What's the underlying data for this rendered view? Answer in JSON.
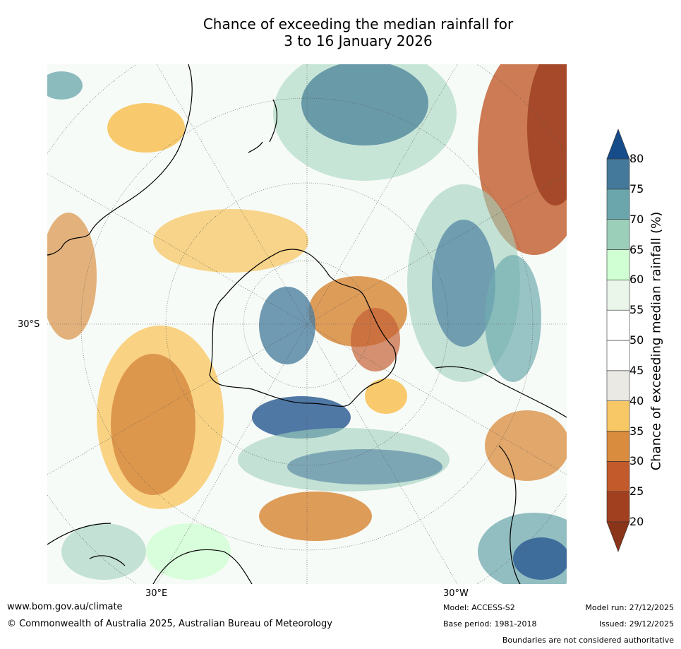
{
  "title_line1": "Chance of exceeding the median rainfall for",
  "title_line2": "3 to 16 January 2026",
  "map_labels": {
    "lat_30s": "30°S",
    "lon_30e": "30°E",
    "lon_30w": "30°W"
  },
  "colorbar": {
    "title": "Chance of exceeding median rainfall (%)",
    "ticks": [
      "20",
      "25",
      "30",
      "35",
      "40",
      "45",
      "50",
      "55",
      "60",
      "65",
      "70",
      "75",
      "80"
    ],
    "colors": [
      "#a1401f",
      "#c25a2c",
      "#d98c3e",
      "#f8c866",
      "#ebe9e4",
      "#ffffff",
      "#ffffff",
      "#eaf6ea",
      "#cfffd2",
      "#9bcfb9",
      "#6aa6ac",
      "#45799c",
      "#1c4f8b"
    ],
    "under_color": "#8a3419",
    "over_color": "#174c8a"
  },
  "footer": {
    "url": "www.bom.gov.au/climate",
    "copyright": "© Commonwealth of Australia 2025, Australian Bureau of Meteorology",
    "model": "Model: ACCESS-S2",
    "base_period": "Base period: 1981-2018",
    "model_run": "Model run: 27/12/2025",
    "issued": "Issued: 29/12/2025",
    "disclaimer": "Boundaries are not considered authoritative"
  }
}
